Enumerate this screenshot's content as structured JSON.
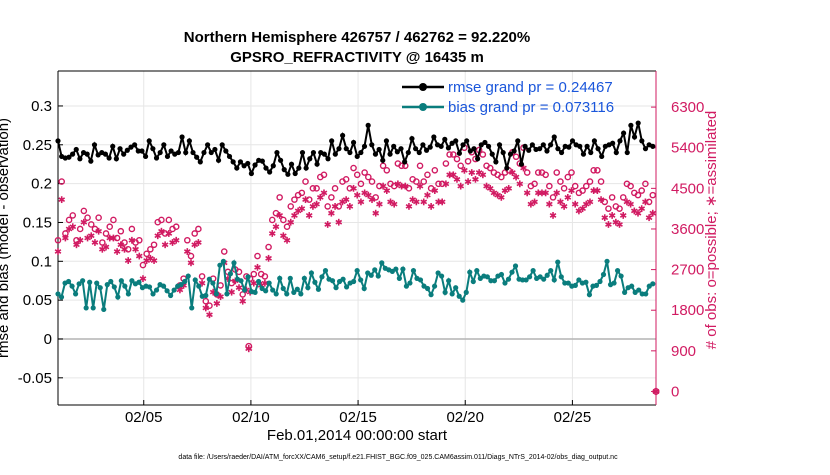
{
  "chart_data": {
    "type": "line",
    "title": [
      "Northern Hemisphere 426757 / 462762 = 92.220%",
      "GPSRO_REFRACTIVITY @ 16435 m"
    ],
    "xlabel": "Feb.01,2014 00:00:00 start",
    "ylabel_left": "rmse and bias (model - observation)",
    "ylabel_right": "# of obs: o=possible; ∗=assimilated",
    "footnote": "data file: /Users/raeder/DAI/ATM_forcXX/CAM6_setup/f.e21.FHIST_BGC.f09_025.CAM6assim.011/Diags_NTrS_2014-02/obs_diag_output.nc",
    "xlim": [
      1,
      28.9
    ],
    "ylim_left": [
      -0.085,
      0.345
    ],
    "ylim_right": [
      -300,
      7100
    ],
    "grid": true,
    "legend_position": "top-right",
    "x_ticks": [
      5,
      10,
      15,
      20,
      25
    ],
    "x_tick_labels": [
      "02/05",
      "02/10",
      "02/15",
      "02/20",
      "02/25"
    ],
    "y_left_ticks": [
      -0.05,
      0,
      0.05,
      0.1,
      0.15,
      0.2,
      0.25,
      0.3
    ],
    "y_left_tick_labels": [
      "-0.05",
      "0",
      "0.05",
      "0.1",
      "0.15",
      "0.2",
      "0.25",
      "0.3"
    ],
    "y_right_ticks": [
      0,
      900,
      1800,
      2700,
      3600,
      4500,
      5400,
      6300
    ],
    "y_right_tick_labels": [
      "0",
      "900",
      "1800",
      "2700",
      "3600",
      "4500",
      "5400",
      "6300"
    ],
    "series": [
      {
        "name": "rmse grand pr = 0.24467",
        "axis": "left",
        "color": "#000000",
        "marker": "filled-circle",
        "values": [
          0.255,
          0.235,
          0.233,
          0.234,
          0.238,
          0.244,
          0.232,
          0.24,
          0.238,
          0.229,
          0.25,
          0.237,
          0.24,
          0.238,
          0.233,
          0.248,
          0.232,
          0.245,
          0.238,
          0.243,
          0.247,
          0.25,
          0.242,
          0.242,
          0.235,
          0.255,
          0.245,
          0.233,
          0.24,
          0.25,
          0.235,
          0.242,
          0.238,
          0.24,
          0.26,
          0.24,
          0.255,
          0.24,
          0.234,
          0.228,
          0.24,
          0.25,
          0.24,
          0.244,
          0.23,
          0.25,
          0.242,
          0.235,
          0.228,
          0.22,
          0.228,
          0.223,
          0.226,
          0.213,
          0.224,
          0.23,
          0.229,
          0.22,
          0.215,
          0.223,
          0.24,
          0.23,
          0.218,
          0.212,
          0.225,
          0.213,
          0.22,
          0.24,
          0.22,
          0.232,
          0.24,
          0.225,
          0.24,
          0.238,
          0.232,
          0.255,
          0.238,
          0.245,
          0.262,
          0.245,
          0.24,
          0.253,
          0.235,
          0.24,
          0.248,
          0.275,
          0.25,
          0.238,
          0.244,
          0.23,
          0.255,
          0.238,
          0.248,
          0.241,
          0.245,
          0.228,
          0.24,
          0.258,
          0.245,
          0.24,
          0.25,
          0.243,
          0.247,
          0.26,
          0.25,
          0.248,
          0.257,
          0.246,
          0.252,
          0.255,
          0.239,
          0.25,
          0.255,
          0.242,
          0.245,
          0.232,
          0.25,
          0.253,
          0.248,
          0.238,
          0.228,
          0.25,
          0.24,
          0.22,
          0.238,
          0.242,
          0.255,
          0.225,
          0.248,
          0.243,
          0.25,
          0.244,
          0.245,
          0.25,
          0.242,
          0.25,
          0.26,
          0.245,
          0.24,
          0.248,
          0.247,
          0.255,
          0.25,
          0.248,
          0.238,
          0.248,
          0.24,
          0.255,
          0.245,
          0.235,
          0.248,
          0.25,
          0.252,
          0.24,
          0.255,
          0.265,
          0.24,
          0.275,
          0.26,
          0.278,
          0.255,
          0.245,
          0.25,
          0.248
        ]
      },
      {
        "name": "bias grand pr = 0.073116",
        "axis": "left",
        "color": "#0a7d7d",
        "marker": "filled-circle",
        "values": [
          0.058,
          0.054,
          0.072,
          0.074,
          0.068,
          0.058,
          0.071,
          0.075,
          0.04,
          0.073,
          0.04,
          0.072,
          0.066,
          0.038,
          0.07,
          0.074,
          0.067,
          0.054,
          0.075,
          0.068,
          0.058,
          0.075,
          0.071,
          0.073,
          0.066,
          0.068,
          0.067,
          0.058,
          0.063,
          0.07,
          0.068,
          0.062,
          0.056,
          0.063,
          0.068,
          0.07,
          0.074,
          0.081,
          0.04,
          0.076,
          0.068,
          0.055,
          0.056,
          0.077,
          0.072,
          0.058,
          0.095,
          0.1,
          0.058,
          0.084,
          0.098,
          0.077,
          0.075,
          0.063,
          0.08,
          0.061,
          0.06,
          0.074,
          0.065,
          0.062,
          0.072,
          0.063,
          0.058,
          0.078,
          0.065,
          0.058,
          0.078,
          0.06,
          0.064,
          0.058,
          0.078,
          0.066,
          0.085,
          0.073,
          0.064,
          0.08,
          0.088,
          0.077,
          0.075,
          0.066,
          0.074,
          0.077,
          0.067,
          0.072,
          0.074,
          0.088,
          0.076,
          0.065,
          0.085,
          0.082,
          0.089,
          0.081,
          0.098,
          0.091,
          0.089,
          0.087,
          0.09,
          0.078,
          0.09,
          0.068,
          0.072,
          0.088,
          0.078,
          0.076,
          0.068,
          0.065,
          0.057,
          0.068,
          0.085,
          0.081,
          0.06,
          0.075,
          0.058,
          0.066,
          0.055,
          0.05,
          0.06,
          0.086,
          0.074,
          0.088,
          0.078,
          0.081,
          0.08,
          0.075,
          0.075,
          0.081,
          0.083,
          0.072,
          0.077,
          0.086,
          0.094,
          0.077,
          0.076,
          0.076,
          0.08,
          0.088,
          0.078,
          0.08,
          0.077,
          0.082,
          0.088,
          0.076,
          0.099,
          0.08,
          0.072,
          0.072,
          0.068,
          0.069,
          0.076,
          0.072,
          0.073,
          0.057,
          0.068,
          0.069,
          0.074,
          0.083,
          0.1,
          0.07,
          0.072,
          0.088,
          0.081,
          0.06,
          0.066,
          0.068,
          0.06,
          0.063,
          0.058,
          0.058,
          0.068,
          0.071
        ]
      },
      {
        "name": "possible",
        "axis": "right",
        "color": "#d11b62",
        "marker": "open-circle",
        "values": [
          3350,
          4650,
          3500,
          3800,
          3900,
          3350,
          3600,
          4000,
          3850,
          3700,
          3600,
          3850,
          3300,
          3500,
          3650,
          3800,
          3400,
          3550,
          3300,
          3150,
          3600,
          3300,
          3350,
          2800,
          3050,
          3150,
          3250,
          3750,
          3800,
          3500,
          3800,
          3600,
          3650,
          2350,
          2500,
          3350,
          3000,
          3500,
          3600,
          2550,
          2000,
          1900,
          2500,
          2150,
          2350,
          3100,
          2650,
          2400,
          2700,
          2650,
          2150,
          2550,
          2500,
          2600,
          3000,
          2600,
          2550,
          3200,
          3800,
          3950,
          4300,
          3800,
          3650,
          4100,
          4250,
          4350,
          4400,
          4650,
          4250,
          4500,
          4500,
          4750,
          4800,
          4100,
          4300,
          4500,
          4100,
          4650,
          4700,
          4500,
          4950,
          4800,
          4600,
          4850,
          4750,
          4650,
          4300,
          4550,
          5000,
          4900,
          4600,
          4550,
          5050,
          5000,
          5000,
          4500,
          4700,
          4650,
          5000,
          4650,
          4800,
          4500,
          4900,
          4600,
          4600,
          5050,
          5250,
          5250,
          5150,
          5000,
          5400,
          5100,
          5300,
          5150,
          5350,
          5250,
          5000,
          4950,
          4850,
          4800,
          4750,
          4850,
          4900,
          5300,
          5200,
          5050,
          5400,
          4850,
          4550,
          4600,
          4850,
          4850,
          4800,
          4550,
          4300,
          4850,
          4650,
          4500,
          4750,
          4850,
          4550,
          4400,
          4450,
          4550,
          4650,
          4900,
          4900,
          4650,
          4200,
          4050,
          4300,
          4100,
          4050,
          4300,
          4600,
          4550,
          4400,
          4350,
          4450,
          4600,
          4200,
          4350
        ]
      },
      {
        "name": "assimilated",
        "axis": "right",
        "color": "#d11b62",
        "marker": "asterisk",
        "values": [
          3100,
          4250,
          3400,
          3600,
          3650,
          3250,
          3350,
          3750,
          3400,
          3450,
          3300,
          3550,
          3150,
          3200,
          3400,
          3400,
          3100,
          3250,
          3150,
          2900,
          3350,
          3150,
          3000,
          2500,
          2900,
          2950,
          2900,
          3450,
          3550,
          3250,
          3500,
          3300,
          3350,
          2250,
          2350,
          3100,
          2850,
          3250,
          3300,
          2400,
          1850,
          1700,
          2200,
          1950,
          2100,
          2850,
          2500,
          2200,
          2450,
          2300,
          2000,
          2250,
          2200,
          2400,
          2750,
          2350,
          2400,
          2950,
          3500,
          3650,
          3900,
          3450,
          3350,
          3750,
          3900,
          4000,
          4050,
          4250,
          3900,
          4100,
          4150,
          4300,
          4400,
          3700,
          3950,
          4100,
          3750,
          4200,
          4250,
          4100,
          4500,
          4350,
          4200,
          4400,
          4350,
          4250,
          3950,
          4150,
          4550,
          4450,
          4200,
          4150,
          4600,
          4550,
          4550,
          4100,
          4250,
          4200,
          4550,
          4200,
          4350,
          4100,
          4450,
          4200,
          4200,
          4600,
          4800,
          4800,
          4700,
          4550,
          4900,
          4650,
          4850,
          4700,
          4850,
          4800,
          4550,
          4500,
          4400,
          4350,
          4300,
          4450,
          4500,
          4850,
          4750,
          4600,
          4950,
          4400,
          4150,
          4200,
          4400,
          4400,
          4400,
          4150,
          3900,
          4400,
          4200,
          4100,
          4300,
          4450,
          4150,
          4000,
          4050,
          4150,
          4200,
          4450,
          4450,
          4250,
          3850,
          3700,
          3900,
          3750,
          3700,
          3900,
          4200,
          4150,
          4000,
          3950,
          4050,
          4200,
          3850,
          3950
        ]
      }
    ],
    "annotations": [
      {
        "text": "∗",
        "note": "assimilated count near 02/10",
        "x": 9.9,
        "y_right": 950
      },
      {
        "text": "◯",
        "note": "possible count near 02/10",
        "x": 9.9,
        "y_right": 1000
      },
      {
        "text": "∗",
        "note": "assimilated at end",
        "x": 28.9,
        "y_right": 0
      },
      {
        "text": "◯",
        "note": "possible at end",
        "x": 28.9,
        "y_right": 0
      }
    ]
  },
  "colors": {
    "rmse": "#000000",
    "bias": "#0a7d7d",
    "counts": "#d11b62",
    "legend_text": "#1a56db",
    "grid": "#e6e6e6",
    "zero_line": "#b4b4b4"
  }
}
